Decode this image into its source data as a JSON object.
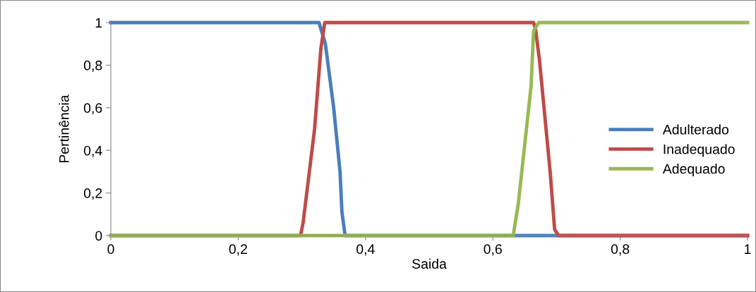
{
  "chart_data": {
    "type": "line",
    "xlabel": "Saida",
    "ylabel": "Pertinência",
    "xlim": [
      0,
      1
    ],
    "ylim": [
      0,
      1
    ],
    "xticks": [
      0,
      {
        "value": 0.2,
        "label": "0,2"
      },
      {
        "value": 0.4,
        "label": "0,4"
      },
      {
        "value": 0.6,
        "label": "0,6"
      },
      {
        "value": 0.8,
        "label": "0,8"
      },
      1
    ],
    "yticks": [
      0,
      {
        "value": 0.2,
        "label": "0,2"
      },
      {
        "value": 0.4,
        "label": "0,4"
      },
      {
        "value": 0.6,
        "label": "0,6"
      },
      {
        "value": 0.8,
        "label": "0,8"
      },
      1
    ],
    "grid": false,
    "legend": "right",
    "marker": "none",
    "line_style": "solid",
    "series": [
      {
        "name": "Adulterado",
        "color": "#4a7ebb",
        "x": [
          0,
          0.327,
          0.337,
          0.35,
          0.36,
          0.363,
          0.368,
          1
        ],
        "values": [
          1,
          1,
          0.9,
          0.6,
          0.3,
          0.11,
          0,
          0
        ]
      },
      {
        "name": "Inadequado",
        "color": "#be4b48",
        "x": [
          0,
          0.298,
          0.302,
          0.32,
          0.33,
          0.336,
          0.664,
          0.667,
          0.673,
          0.69,
          0.697,
          0.703,
          1
        ],
        "values": [
          0,
          0,
          0.06,
          0.5,
          0.88,
          1,
          1,
          0.97,
          0.83,
          0.3,
          0.03,
          0,
          0
        ]
      },
      {
        "name": "Adequado",
        "color": "#98b954",
        "x": [
          0,
          0.632,
          0.64,
          0.66,
          0.664,
          0.672,
          1
        ],
        "values": [
          0,
          0,
          0.15,
          0.7,
          0.96,
          1,
          1
        ]
      }
    ]
  }
}
